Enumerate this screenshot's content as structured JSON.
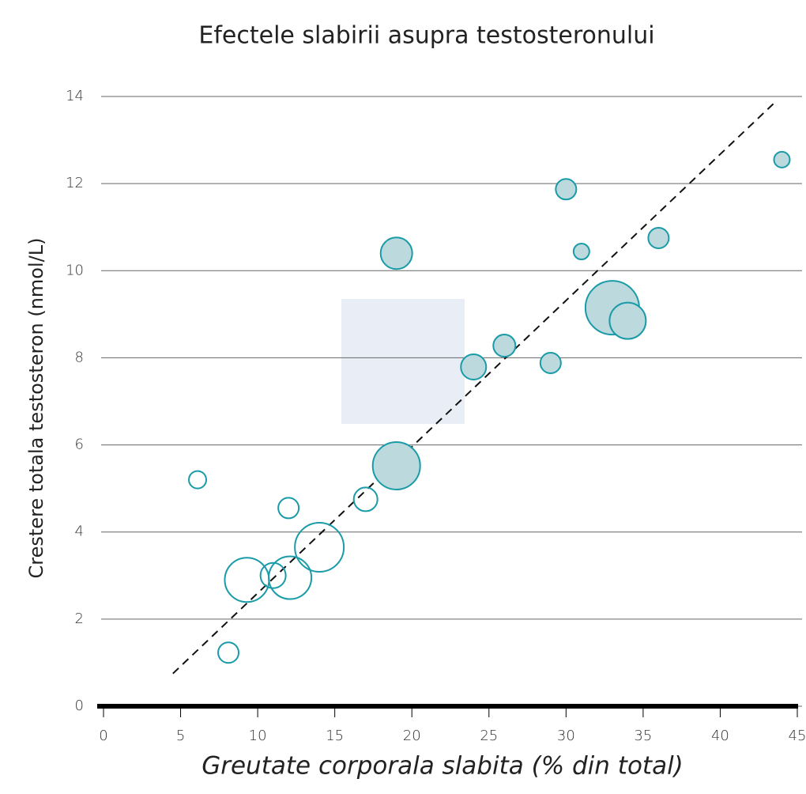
{
  "chart_data": {
    "type": "bubble",
    "title": "Efectele slabirii asupra testosteronului",
    "xlabel": "Greutate corporala slabita (% din total)",
    "ylabel": "Crestere totala testosteron (nmol/L)",
    "xlim": [
      0,
      45
    ],
    "ylim": [
      0,
      14
    ],
    "xticks": [
      0,
      5,
      10,
      15,
      20,
      25,
      30,
      35,
      40,
      45
    ],
    "yticks": [
      0,
      2,
      4,
      6,
      8,
      10,
      12,
      14
    ],
    "grid": true,
    "series": [
      {
        "color": "#1a9ba8",
        "fill": "#bcd9dd",
        "x": [
          44,
          30,
          19,
          31,
          36,
          33,
          34,
          26,
          24,
          29,
          19
        ],
        "values": [
          12.55,
          11.87,
          10.4,
          10.44,
          10.75,
          9.15,
          8.85,
          8.28,
          7.79,
          7.88,
          5.52
        ],
        "sizes": [
          10,
          13,
          20,
          10,
          13,
          34,
          23,
          14,
          16,
          13,
          30
        ]
      },
      {
        "color": "#1a9ba8",
        "fill": "none",
        "x": [
          6.1,
          12,
          17,
          14,
          9.3,
          11,
          12.1,
          8.1
        ],
        "values": [
          5.2,
          4.55,
          4.75,
          3.65,
          2.9,
          3.0,
          2.95,
          1.23
        ],
        "sizes": [
          11,
          13,
          15,
          31,
          28,
          16,
          27,
          13
        ]
      }
    ],
    "trend_line": {
      "x": [
        4.5,
        43.5
      ],
      "values": [
        0.75,
        13.85
      ],
      "color": "#111"
    }
  }
}
